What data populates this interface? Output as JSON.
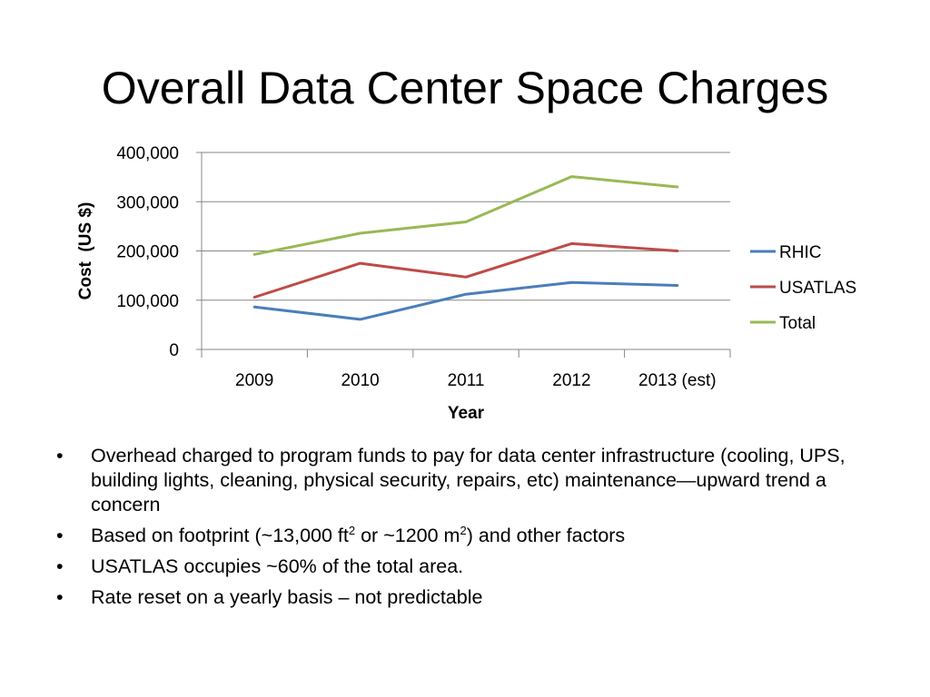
{
  "title": "Overall Data Center Space Charges",
  "chart_data": {
    "type": "line",
    "categories": [
      "2009",
      "2010",
      "2011",
      "2012",
      "2013 (est)"
    ],
    "series": [
      {
        "name": "RHIC",
        "values": [
          86000,
          61000,
          112000,
          136000,
          130000
        ],
        "color": "#4a7ebb"
      },
      {
        "name": "USATLAS",
        "values": [
          106000,
          175000,
          147000,
          215000,
          200000
        ],
        "color": "#be4b48"
      },
      {
        "name": "Total",
        "values": [
          193000,
          236000,
          259000,
          351000,
          330000
        ],
        "color": "#98b954"
      }
    ],
    "xlabel": "Year",
    "ylabel": "Cost  (US $)",
    "ylim": [
      0,
      400000
    ],
    "yticks": [
      0,
      100000,
      200000,
      300000,
      400000
    ],
    "ytick_labels": [
      "0",
      "100,000",
      "200,000",
      "300,000",
      "400,000"
    ],
    "grid": true,
    "legend": "right"
  },
  "bullets": [
    {
      "text": "Overhead charged to program funds to pay for data center infrastructure (cooling, UPS, building lights, cleaning, physical security, repairs, etc) maintenance—upward trend a concern"
    },
    {
      "pre": "Based on footprint (~13,000 ft",
      "sup1": "2",
      "mid": " or ~1200 m",
      "sup2": "2",
      "post": ") and other factors"
    },
    {
      "text": "USATLAS occupies ~60% of the total area."
    },
    {
      "text": "Rate reset on a yearly basis – not predictable"
    }
  ]
}
